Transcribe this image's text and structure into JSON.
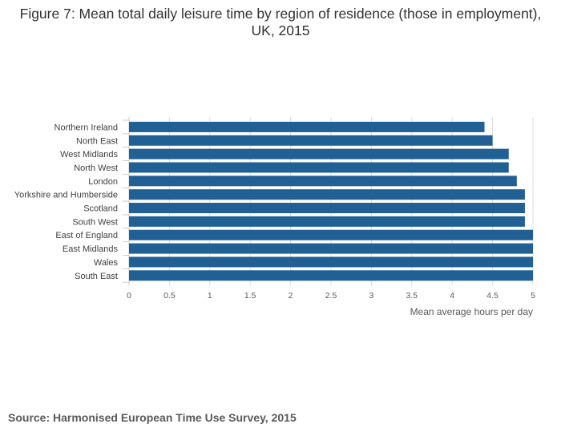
{
  "chart_data": {
    "type": "bar",
    "orientation": "horizontal",
    "title": "Figure 7: Mean total daily leisure time by region of residence (those in employment), UK, 2015",
    "categories": [
      "Northern Ireland",
      "North East",
      "West Midlands",
      "North West",
      "London",
      "Yorkshire and Humberside",
      "Scotland",
      "South West",
      "East of England",
      "East Midlands",
      "Wales",
      "South East"
    ],
    "values": [
      4.4,
      4.5,
      4.7,
      4.7,
      4.8,
      4.9,
      4.9,
      4.9,
      5.0,
      5.0,
      5.0,
      5.0
    ],
    "xlabel": "Mean average hours per day",
    "ylabel": "",
    "xlim": [
      0,
      5
    ],
    "xticks": [
      "0",
      "0.5",
      "1",
      "1.5",
      "2",
      "2.5",
      "3",
      "3.5",
      "4",
      "4.5",
      "5"
    ],
    "grid": true,
    "bar_color": "#206095"
  },
  "source": "Source: Harmonised European Time Use Survey, 2015"
}
